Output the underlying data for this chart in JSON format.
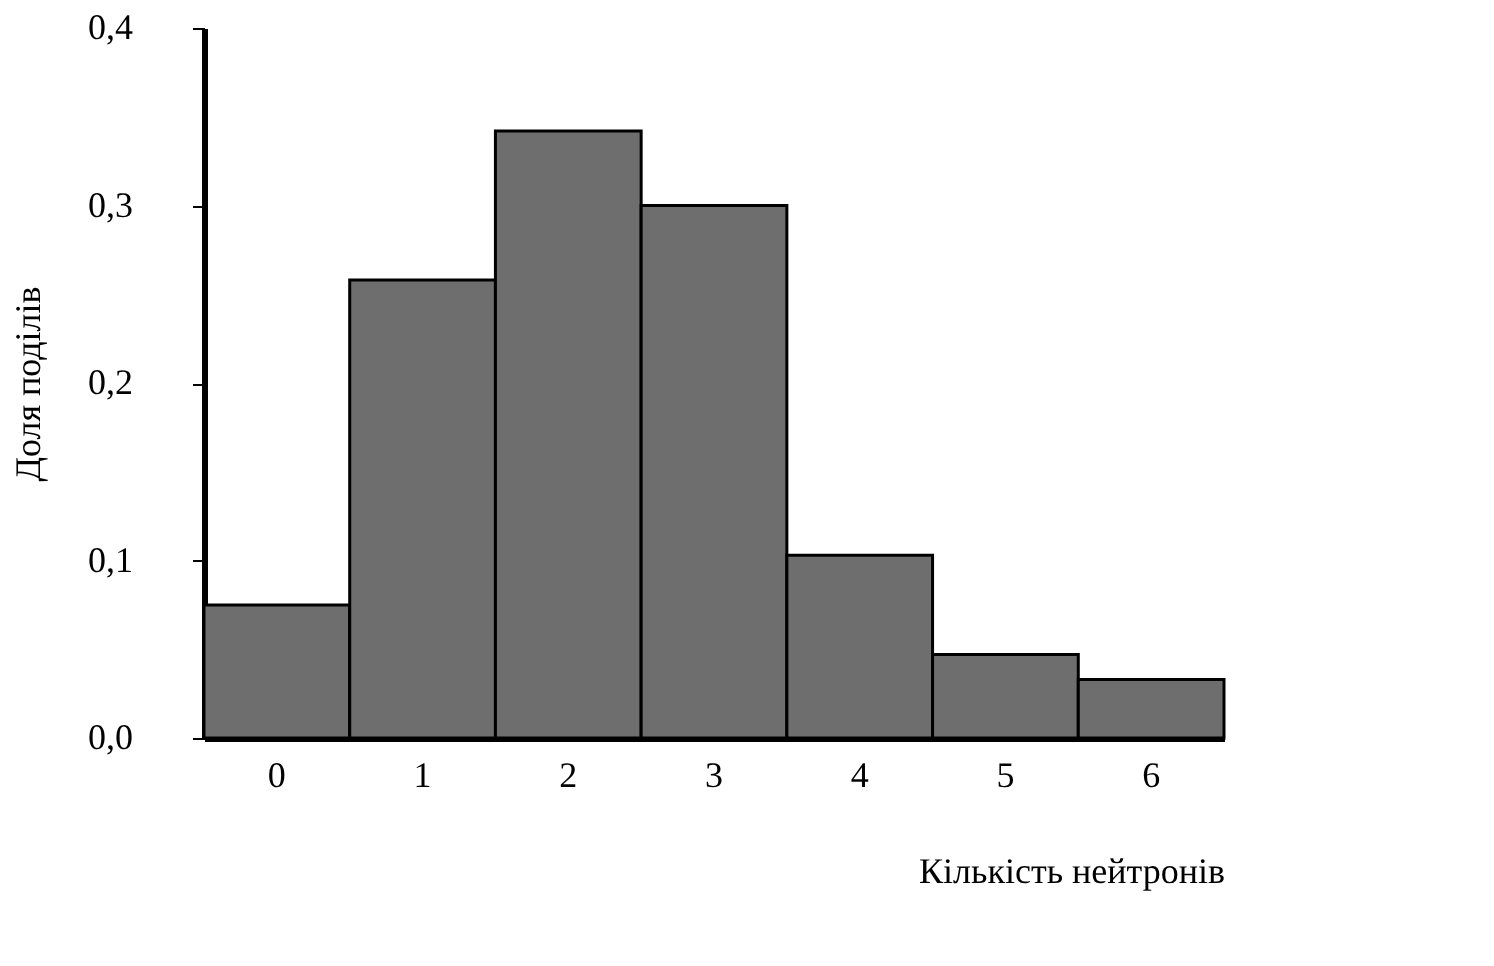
{
  "chart_data": {
    "type": "bar",
    "xlabel": "Кількість нейтронів",
    "ylabel": "Доля поділів",
    "categories": [
      "0",
      "1",
      "2",
      "3",
      "4",
      "5",
      "6"
    ],
    "values": [
      0.075,
      0.258,
      0.342,
      0.3,
      0.103,
      0.047,
      0.033
    ],
    "color": "#6e6e6e",
    "ylim": [
      0,
      0.4
    ],
    "yticks": [
      {
        "value": 0,
        "label": "0,0"
      },
      {
        "value": 0.1,
        "label": "0,1"
      },
      {
        "value": 0.2,
        "label": "0,2"
      },
      {
        "value": 0.3,
        "label": "0,3"
      },
      {
        "value": 0.4,
        "label": "0,4"
      }
    ],
    "grid": false
  }
}
